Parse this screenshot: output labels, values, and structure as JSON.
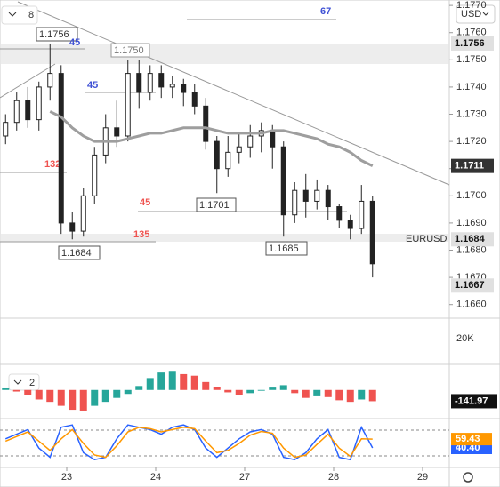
{
  "chart_data": {
    "type": "candlestick",
    "symbol": "EURUSD",
    "currency": "USD",
    "interval_count": "8",
    "x": [
      0.5,
      1.5,
      2.5,
      3.5,
      4.5,
      5.5,
      6.5,
      7.5,
      8.5,
      9.5,
      10.5,
      11.5,
      12.5,
      13.5,
      14.5,
      15.5,
      16.5,
      17.5,
      18.5,
      19.5,
      20.5,
      21.5,
      22.5,
      23.5,
      24.5,
      25.5,
      26.5,
      27.5,
      28.5,
      29.5,
      30.5,
      31.5,
      32.5,
      33.5
    ],
    "open": [
      1.1722,
      1.1727,
      1.1735,
      1.1728,
      1.174,
      1.1745,
      1.169,
      1.1687,
      1.17,
      1.1715,
      1.1725,
      1.1722,
      1.1745,
      1.1738,
      1.1745,
      1.174,
      1.1741,
      1.1738,
      1.1733,
      1.172,
      1.171,
      1.1716,
      1.1718,
      1.1722,
      1.1724,
      1.1718,
      1.1693,
      1.1702,
      1.1698,
      1.1702,
      1.1696,
      1.1691,
      1.1688,
      1.1698
    ],
    "high": [
      1.173,
      1.1738,
      1.174,
      1.1742,
      1.1756,
      1.1748,
      1.1694,
      1.1703,
      1.1718,
      1.173,
      1.1735,
      1.175,
      1.175,
      1.1748,
      1.1748,
      1.1744,
      1.1743,
      1.1741,
      1.1736,
      1.1722,
      1.1722,
      1.1723,
      1.1726,
      1.1727,
      1.1726,
      1.172,
      1.1705,
      1.1708,
      1.1706,
      1.1704,
      1.1697,
      1.1693,
      1.1704,
      1.17
    ],
    "low": [
      1.1719,
      1.1724,
      1.1725,
      1.1724,
      1.1735,
      1.1686,
      1.1684,
      1.1685,
      1.1697,
      1.1712,
      1.1718,
      1.172,
      1.1732,
      1.1735,
      1.1736,
      1.1736,
      1.1733,
      1.173,
      1.1717,
      1.1701,
      1.1707,
      1.1712,
      1.1714,
      1.1716,
      1.171,
      1.1685,
      1.169,
      1.1692,
      1.1695,
      1.1691,
      1.1688,
      1.1684,
      1.1686,
      1.167
    ],
    "close": [
      1.1727,
      1.1735,
      1.1728,
      1.174,
      1.1745,
      1.169,
      1.1687,
      1.17,
      1.1715,
      1.1725,
      1.1722,
      1.1745,
      1.1738,
      1.1745,
      1.174,
      1.1741,
      1.1738,
      1.1733,
      1.172,
      1.171,
      1.1716,
      1.1718,
      1.1722,
      1.1724,
      1.1718,
      1.1693,
      1.1702,
      1.1698,
      1.1702,
      1.1696,
      1.1691,
      1.1688,
      1.1698,
      1.1675
    ],
    "ma": {
      "color": "#9e9e9e",
      "values": [
        null,
        null,
        null,
        null,
        1.1731,
        1.1729,
        1.1725,
        1.1722,
        1.172,
        1.172,
        1.172,
        1.1721,
        1.1722,
        1.1723,
        1.1723,
        1.1724,
        1.1725,
        1.1725,
        1.1725,
        1.1724,
        1.1723,
        1.1723,
        1.1723,
        1.1723,
        1.1724,
        1.1724,
        1.1723,
        1.1722,
        1.1721,
        1.1719,
        1.1718,
        1.1716,
        1.1713,
        1.1711
      ]
    },
    "xlim": [
      0,
      40.4
    ],
    "xticks": [
      {
        "value": 6,
        "label": "23"
      },
      {
        "value": 14,
        "label": "24"
      },
      {
        "value": 22,
        "label": "27"
      },
      {
        "value": 30,
        "label": "28"
      },
      {
        "value": 38,
        "label": "29"
      }
    ],
    "ylim": [
      1.1655,
      1.1772
    ],
    "yticks": [
      {
        "value": 1.177,
        "label": "1.1770"
      },
      {
        "value": 1.176,
        "label": "1.1760"
      },
      {
        "value": 1.175,
        "label": "1.1750"
      },
      {
        "value": 1.174,
        "label": "1.1740"
      },
      {
        "value": 1.173,
        "label": "1.1730"
      },
      {
        "value": 1.172,
        "label": "1.1720"
      },
      {
        "value": 1.171,
        "label": "1.1710"
      },
      {
        "value": 1.17,
        "label": "1.1700"
      },
      {
        "value": 1.169,
        "label": "1.1690"
      },
      {
        "value": 1.168,
        "label": "1.1680"
      },
      {
        "value": 1.167,
        "label": "1.1670"
      },
      {
        "value": 1.166,
        "label": "1.1660"
      }
    ],
    "price_labels": [
      1.1756,
      1.1711,
      1.1684,
      1.1667
    ],
    "annotations": [
      "1.1756",
      "45",
      "1.1750",
      "45",
      "67",
      "132",
      "45",
      "1.1701",
      "135",
      "1.1684",
      "1.1685"
    ],
    "volume_label": "20K",
    "macd": {
      "pane_label": "2",
      "ylim": [
        -350,
        300
      ],
      "up_color": "#26a69a",
      "down_color": "#ef5350",
      "last_label": "-141.97",
      "values": [
        20,
        -20,
        -60,
        -120,
        -150,
        -200,
        -250,
        -260,
        -200,
        -150,
        -100,
        -50,
        50,
        150,
        220,
        230,
        200,
        180,
        100,
        40,
        -30,
        -60,
        -40,
        -10,
        30,
        60,
        -40,
        -100,
        -80,
        -90,
        -130,
        -150,
        -120,
        -141.97
      ]
    },
    "stoch": {
      "ylim": [
        0,
        100
      ],
      "series": [
        {
          "color": "#2962ff",
          "last_label": "40.40",
          "values": [
            60,
            70,
            80,
            40,
            20,
            85,
            90,
            30,
            15,
            20,
            60,
            90,
            85,
            80,
            70,
            85,
            90,
            80,
            40,
            20,
            40,
            60,
            75,
            80,
            70,
            20,
            15,
            30,
            60,
            80,
            20,
            15,
            85,
            40.4
          ]
        },
        {
          "color": "#ff9800",
          "last_label": "59.43",
          "values": [
            55,
            65,
            75,
            55,
            35,
            60,
            80,
            50,
            25,
            20,
            45,
            75,
            85,
            82,
            75,
            80,
            85,
            82,
            55,
            30,
            35,
            50,
            68,
            76,
            72,
            40,
            20,
            25,
            48,
            70,
            40,
            22,
            60,
            59.43
          ]
        }
      ]
    }
  }
}
